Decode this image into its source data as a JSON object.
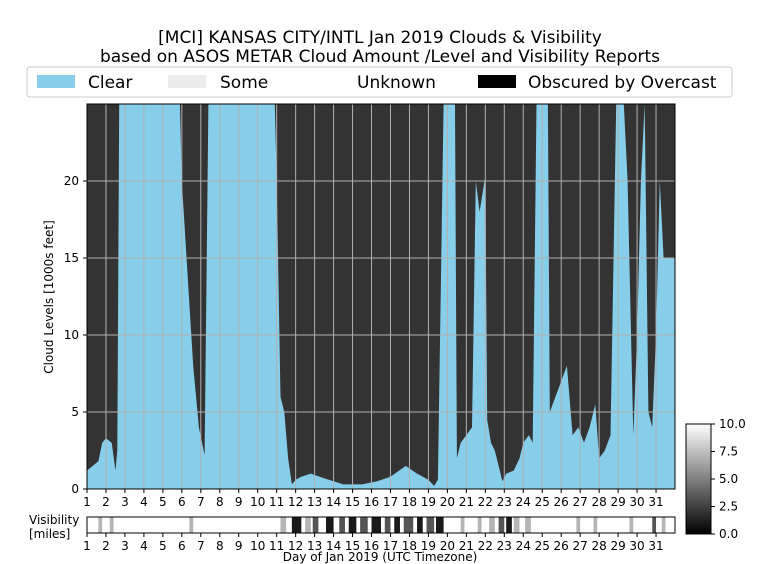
{
  "title_line1": "[MCI] KANSAS CITY/INTL Jan 2019 Clouds & Visibility",
  "title_line2": "based on ASOS METAR Cloud Amount /Level and Visibility Reports",
  "legend": {
    "placement": "top",
    "items": [
      {
        "label": "Clear",
        "color": "#87ceeb"
      },
      {
        "label": "Some",
        "color": "#ececec"
      },
      {
        "label": "Unknown",
        "color": "#ffffff"
      },
      {
        "label": "Obscured by Overcast",
        "color": "#000000"
      }
    ]
  },
  "colors": {
    "clear": "#87ceeb",
    "overcast_fill": "#333333",
    "some_gray": "#b0b0b0",
    "grid": "#b0b0b0"
  },
  "chart_data": {
    "type": "area",
    "ylabel": "Cloud Levels [1000s feet]",
    "xlabel": "Day of Jan 2019 (UTC Timezone)",
    "x_ticks": [
      "1",
      "2",
      "3",
      "4",
      "5",
      "6",
      "7",
      "8",
      "9",
      "10",
      "11",
      "12",
      "13",
      "14",
      "15",
      "16",
      "17",
      "18",
      "19",
      "20",
      "21",
      "22",
      "23",
      "24",
      "25",
      "26",
      "27",
      "28",
      "29",
      "30",
      "31"
    ],
    "y_ticks": [
      "0",
      "5",
      "10",
      "15",
      "20"
    ],
    "xlim": [
      1,
      32
    ],
    "ylim": [
      0,
      25
    ],
    "grid": true,
    "overcast_base_kft": [
      [
        1.0,
        1.2
      ],
      [
        1.3,
        1.5
      ],
      [
        1.6,
        1.8
      ],
      [
        1.8,
        3.0
      ],
      [
        2.0,
        3.3
      ],
      [
        2.3,
        3.0
      ],
      [
        2.5,
        1.2
      ],
      [
        2.6,
        2.5
      ],
      [
        2.7,
        25
      ],
      [
        5.9,
        25
      ],
      [
        6.0,
        20
      ],
      [
        6.3,
        14
      ],
      [
        6.6,
        8
      ],
      [
        6.9,
        4
      ],
      [
        7.2,
        2.2
      ],
      [
        7.4,
        25
      ],
      [
        10.9,
        25
      ],
      [
        11.0,
        20
      ],
      [
        11.2,
        6
      ],
      [
        11.4,
        5
      ],
      [
        11.6,
        2
      ],
      [
        11.8,
        0.3
      ],
      [
        12.0,
        0.6
      ],
      [
        12.3,
        0.8
      ],
      [
        12.8,
        1.0
      ],
      [
        13.5,
        0.7
      ],
      [
        14.0,
        0.5
      ],
      [
        14.5,
        0.3
      ],
      [
        15.5,
        0.3
      ],
      [
        16.3,
        0.5
      ],
      [
        17.0,
        0.8
      ],
      [
        17.8,
        1.5
      ],
      [
        18.4,
        1.0
      ],
      [
        19.0,
        0.6
      ],
      [
        19.3,
        0.2
      ],
      [
        19.5,
        0.6
      ],
      [
        19.8,
        25
      ],
      [
        20.4,
        25
      ],
      [
        20.5,
        2.0
      ],
      [
        20.7,
        3.0
      ],
      [
        21.0,
        3.5
      ],
      [
        21.3,
        4.0
      ],
      [
        21.5,
        20
      ],
      [
        21.7,
        18
      ],
      [
        22.0,
        20.3
      ],
      [
        22.1,
        4.5
      ],
      [
        22.3,
        3.0
      ],
      [
        22.5,
        2.5
      ],
      [
        22.7,
        1.5
      ],
      [
        22.9,
        0.5
      ],
      [
        23.1,
        1.0
      ],
      [
        23.5,
        1.2
      ],
      [
        23.8,
        2.0
      ],
      [
        24.0,
        3.0
      ],
      [
        24.3,
        3.5
      ],
      [
        24.5,
        3.0
      ],
      [
        24.7,
        25
      ],
      [
        25.3,
        25
      ],
      [
        25.4,
        5.0
      ],
      [
        25.7,
        6.0
      ],
      [
        26.0,
        7.0
      ],
      [
        26.3,
        8.0
      ],
      [
        26.6,
        3.5
      ],
      [
        26.9,
        4.0
      ],
      [
        27.2,
        3.0
      ],
      [
        27.5,
        4.0
      ],
      [
        27.8,
        5.5
      ],
      [
        28.0,
        2.0
      ],
      [
        28.3,
        2.5
      ],
      [
        28.6,
        3.5
      ],
      [
        28.9,
        25
      ],
      [
        29.3,
        25
      ],
      [
        29.5,
        20
      ],
      [
        29.8,
        3.5
      ],
      [
        30.0,
        10.0
      ],
      [
        30.2,
        20
      ],
      [
        30.4,
        25
      ],
      [
        30.6,
        5.0
      ],
      [
        30.8,
        4.0
      ],
      [
        31.0,
        10.0
      ],
      [
        31.2,
        20
      ],
      [
        31.4,
        15.0
      ],
      [
        32.0,
        15.0
      ]
    ],
    "colorbar": {
      "ticks": [
        "0.0",
        "2.5",
        "5.0",
        "7.5",
        "10.0"
      ],
      "range": [
        0,
        10
      ]
    },
    "visibility_panel": {
      "label_line1": "Visibility",
      "label_line2": "[miles]",
      "low_visibility_days": [
        [
          11.8,
          12.3
        ],
        [
          12.9,
          13.2
        ],
        [
          13.6,
          14.0
        ],
        [
          14.3,
          14.6
        ],
        [
          14.8,
          15.2
        ],
        [
          15.4,
          15.8
        ],
        [
          16.0,
          16.5
        ],
        [
          16.7,
          17.0
        ],
        [
          17.2,
          17.5
        ],
        [
          17.7,
          18.2
        ],
        [
          18.4,
          18.7
        ],
        [
          18.9,
          19.3
        ],
        [
          19.4,
          19.8
        ],
        [
          22.7,
          23.0
        ],
        [
          23.1,
          23.4
        ],
        [
          30.8,
          31.0
        ]
      ],
      "moderate_visibility_days": [
        [
          1.6,
          1.8
        ],
        [
          2.2,
          2.4
        ],
        [
          6.4,
          6.6
        ],
        [
          11.2,
          11.5
        ],
        [
          12.5,
          12.8
        ],
        [
          20.7,
          20.9
        ],
        [
          21.6,
          21.8
        ],
        [
          22.2,
          22.5
        ],
        [
          23.5,
          23.8
        ],
        [
          24.1,
          24.4
        ],
        [
          26.8,
          27.0
        ],
        [
          27.7,
          27.9
        ],
        [
          29.6,
          29.8
        ],
        [
          31.3,
          31.5
        ]
      ]
    }
  }
}
